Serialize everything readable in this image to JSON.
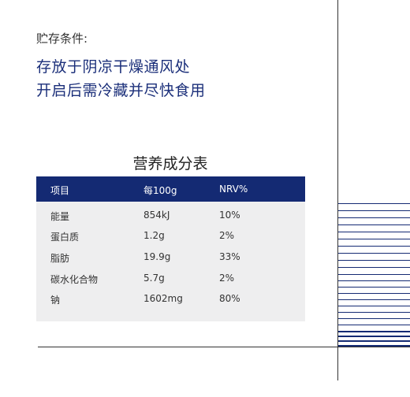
{
  "storage": {
    "label": "贮存条件:",
    "line1": "存放于阴凉干燥通风处",
    "line2": "开启后需冷藏并尽快食用"
  },
  "nutrition": {
    "title": "营养成分表",
    "headers": [
      "项目",
      "每100g",
      "NRV%"
    ],
    "rows": [
      [
        "能量",
        "854kJ",
        "10%"
      ],
      [
        "蛋白质",
        "1.2g",
        "2%"
      ],
      [
        "脂肪",
        "19.9g",
        "33%"
      ],
      [
        "碳水化合物",
        "5.7g",
        "2%"
      ],
      [
        "钠",
        "1602mg",
        "80%"
      ]
    ]
  },
  "colors": {
    "header_bg": "#142a73",
    "accent_text": "#1b2f7a",
    "table_body_bg": "#eeeeef"
  }
}
